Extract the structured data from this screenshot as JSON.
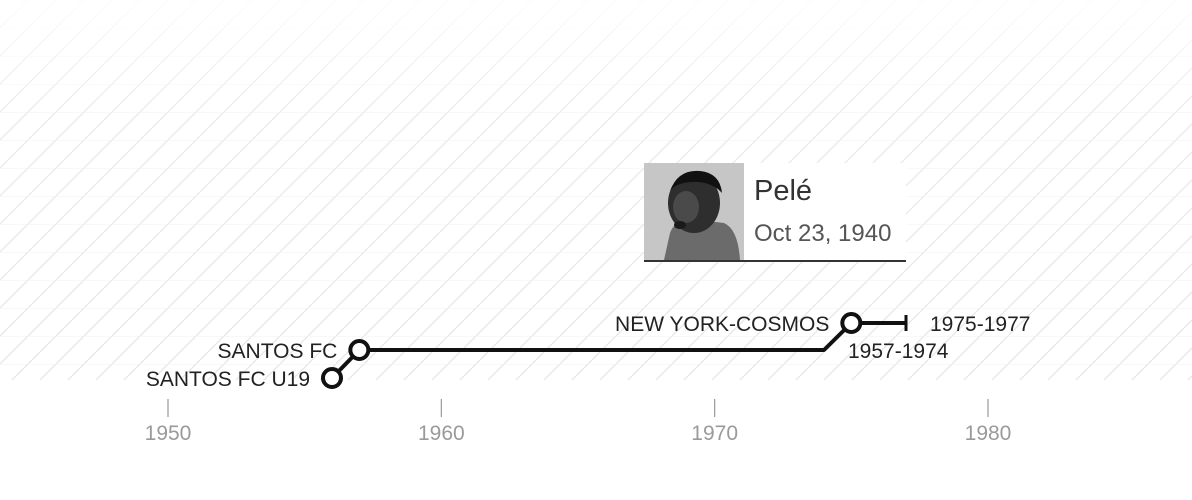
{
  "profile": {
    "name": "Pelé",
    "birth_date": "Oct 23, 1940",
    "photo_icon": "player-portrait-icon"
  },
  "colors": {
    "line": "#111111",
    "axis_text": "#9a9a9a",
    "axis_tick": "#9a9a9a",
    "label_text": "#222222",
    "pattern": "#e6e6e6"
  },
  "chart_data": {
    "type": "timeline",
    "x_axis": {
      "ticks": [
        1950,
        1960,
        1970,
        1980
      ],
      "tick_labels": [
        "1950",
        "1960",
        "1970",
        "1980"
      ],
      "range": [
        1944,
        1987
      ]
    },
    "spells": [
      {
        "club": "SANTOS FC U19",
        "start": 1956,
        "end": null,
        "period_label": ""
      },
      {
        "club": "SANTOS FC",
        "start": 1957,
        "end": 1974,
        "period_label": "1957-1974"
      },
      {
        "club": "NEW YORK-COSMOS",
        "start": 1975,
        "end": 1977,
        "period_label": "1975-1977"
      }
    ]
  }
}
